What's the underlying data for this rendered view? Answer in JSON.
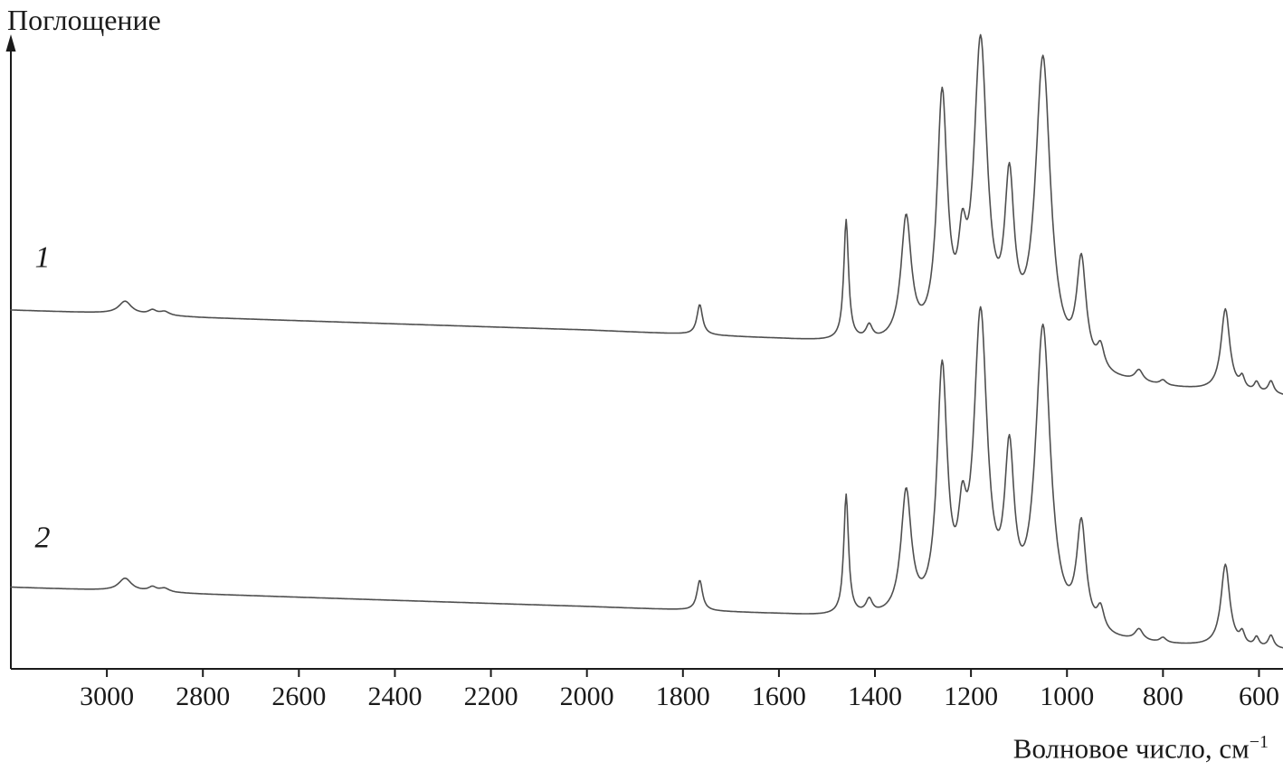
{
  "chart_data": {
    "type": "line",
    "title": "",
    "ylabel": "Поглощение",
    "xlabel": "Волновое число, см",
    "xlabel_superscript": "−1",
    "line_color": "#4f4f4f",
    "axis_color": "#1a1a1a",
    "x_axis": {
      "range": [
        3200,
        550
      ],
      "direction": "decreasing",
      "ticks": [
        3000,
        2800,
        2600,
        2400,
        2200,
        2000,
        1800,
        1600,
        1400,
        1200,
        1000,
        800,
        600
      ]
    },
    "y_axis": {
      "range": [
        0,
        10.4
      ],
      "unit": "absorbance, arbitrary units",
      "ticks": []
    },
    "peak_format": [
      "center_cm-1",
      "height_au",
      "hwhm_cm-1"
    ],
    "baseline_format": [
      "wavenumber_cm-1",
      "absorbance_au"
    ],
    "series": [
      {
        "name": "1",
        "label_pos": {
          "x": 3150,
          "y": 6.35
        },
        "baseline": [
          [
            3200,
            5.67
          ],
          [
            3000,
            5.62
          ],
          [
            2800,
            5.55
          ],
          [
            2400,
            5.45
          ],
          [
            2000,
            5.35
          ],
          [
            1800,
            5.28
          ],
          [
            1600,
            5.2
          ],
          [
            1450,
            5.12
          ],
          [
            1300,
            5.0
          ],
          [
            1200,
            4.9
          ],
          [
            1100,
            4.85
          ],
          [
            1000,
            4.62
          ],
          [
            900,
            4.5
          ],
          [
            800,
            4.42
          ],
          [
            700,
            4.37
          ],
          [
            600,
            4.33
          ],
          [
            550,
            4.3
          ]
        ],
        "peaks": [
          [
            2962,
            0.2,
            16
          ],
          [
            2905,
            0.07,
            10
          ],
          [
            2880,
            0.06,
            12
          ],
          [
            1765,
            0.48,
            7
          ],
          [
            1460,
            1.9,
            6
          ],
          [
            1412,
            0.22,
            8
          ],
          [
            1335,
            1.95,
            13
          ],
          [
            1260,
            3.85,
            13
          ],
          [
            1218,
            1.1,
            10
          ],
          [
            1180,
            4.75,
            17
          ],
          [
            1120,
            2.4,
            12
          ],
          [
            1050,
            4.75,
            19
          ],
          [
            970,
            1.65,
            12
          ],
          [
            930,
            0.35,
            9
          ],
          [
            850,
            0.18,
            10
          ],
          [
            800,
            0.08,
            8
          ],
          [
            670,
            1.3,
            11
          ],
          [
            635,
            0.18,
            6
          ],
          [
            605,
            0.15,
            6
          ],
          [
            575,
            0.2,
            7
          ]
        ]
      },
      {
        "name": "2",
        "label_pos": {
          "x": 3150,
          "y": 1.92
        },
        "baseline": [
          [
            3200,
            1.29
          ],
          [
            3000,
            1.24
          ],
          [
            2800,
            1.18
          ],
          [
            2400,
            1.08
          ],
          [
            2000,
            0.98
          ],
          [
            1800,
            0.92
          ],
          [
            1600,
            0.85
          ],
          [
            1450,
            0.78
          ],
          [
            1300,
            0.68
          ],
          [
            1200,
            0.6
          ],
          [
            1100,
            0.55
          ],
          [
            1000,
            0.42
          ],
          [
            900,
            0.38
          ],
          [
            800,
            0.35
          ],
          [
            700,
            0.33
          ],
          [
            600,
            0.3
          ],
          [
            550,
            0.29
          ]
        ],
        "peaks": [
          [
            2962,
            0.2,
            16
          ],
          [
            2905,
            0.07,
            10
          ],
          [
            2880,
            0.06,
            12
          ],
          [
            1765,
            0.48,
            7
          ],
          [
            1460,
            1.9,
            6
          ],
          [
            1412,
            0.22,
            8
          ],
          [
            1335,
            1.95,
            13
          ],
          [
            1260,
            3.85,
            13
          ],
          [
            1218,
            1.1,
            10
          ],
          [
            1180,
            4.75,
            17
          ],
          [
            1120,
            2.4,
            12
          ],
          [
            1050,
            4.75,
            19
          ],
          [
            970,
            1.65,
            12
          ],
          [
            930,
            0.35,
            9
          ],
          [
            850,
            0.18,
            10
          ],
          [
            800,
            0.08,
            8
          ],
          [
            670,
            1.3,
            11
          ],
          [
            635,
            0.18,
            6
          ],
          [
            605,
            0.15,
            6
          ],
          [
            575,
            0.2,
            7
          ]
        ]
      }
    ]
  }
}
